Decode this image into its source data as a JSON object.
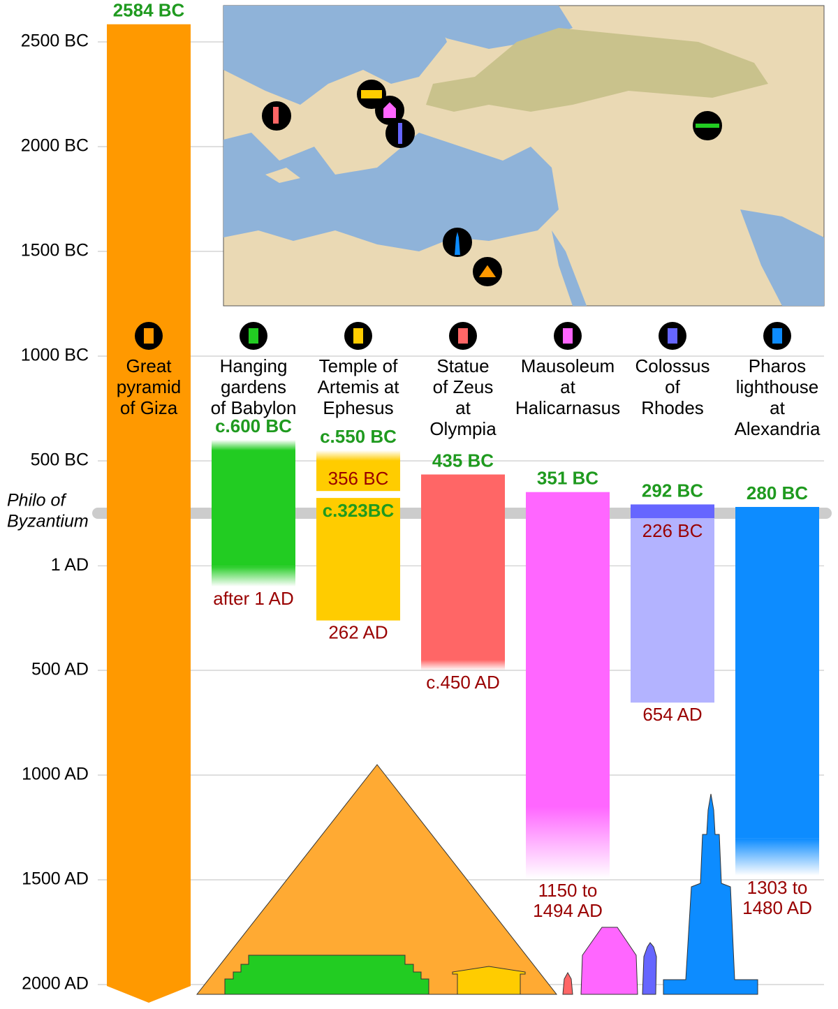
{
  "chart_data": {
    "type": "timeline",
    "ylim": [
      -2700,
      2100
    ],
    "yticks": [
      {
        "value": -2500,
        "label": "2500 BC"
      },
      {
        "value": -2000,
        "label": "2000 BC"
      },
      {
        "value": -1500,
        "label": "1500 BC"
      },
      {
        "value": -1000,
        "label": "1000 BC"
      },
      {
        "value": -500,
        "label": "500 BC"
      },
      {
        "value": 1,
        "label": "1 AD"
      },
      {
        "value": 500,
        "label": "500 AD"
      },
      {
        "value": 1000,
        "label": "1000 AD"
      },
      {
        "value": 1500,
        "label": "1500 AD"
      },
      {
        "value": 2000,
        "label": "2000 AD"
      }
    ],
    "grid": true,
    "reference": {
      "lines": [
        "Philo of",
        "Byzantium"
      ],
      "value": -250
    },
    "series": [
      {
        "name": [
          "Great",
          "pyramid",
          "of Giza"
        ],
        "color": "#ff9900",
        "segments": [
          {
            "start": -2584,
            "end": null,
            "labels": [
              {
                "lines": [
                  "2584 BC"
                ],
                "edge": "start",
                "inside": false,
                "color": "#1f9a1f"
              }
            ]
          }
        ]
      },
      {
        "name": [
          "Hanging",
          "gardens",
          "of Babylon"
        ],
        "color": "#22cc22",
        "segments": [
          {
            "start": -600,
            "fade_start": -550,
            "fade_end": 1,
            "end": 100,
            "labels": [
              {
                "lines": [
                  "c.600 BC"
                ],
                "edge": "start",
                "inside": false,
                "color": "#1f9a1f"
              },
              {
                "lines": [
                  "after 1 AD"
                ],
                "edge": "end",
                "inside": false,
                "color": "#990000"
              }
            ]
          }
        ]
      },
      {
        "name": [
          "Temple of",
          "Artemis at",
          "Ephesus"
        ],
        "color": "#ffcc00",
        "segments": [
          {
            "start": -550,
            "fade_start": -500,
            "end": -356,
            "labels": [
              {
                "lines": [
                  "c.550 BC"
                ],
                "edge": "start",
                "inside": false,
                "color": "#1f9a1f"
              },
              {
                "lines": [
                  "356 BC"
                ],
                "edge": "end",
                "inside": true,
                "color": "#990000"
              }
            ]
          },
          {
            "start": -323,
            "end": 262,
            "labels": [
              {
                "lines": [
                  "c.323BC"
                ],
                "edge": "start",
                "inside": true,
                "color": "#1f9a1f"
              },
              {
                "lines": [
                  "262 AD"
                ],
                "edge": "end",
                "inside": false,
                "color": "#990000"
              }
            ]
          }
        ]
      },
      {
        "name": [
          "Statue",
          "of Zeus",
          "at",
          "Olympia"
        ],
        "color": "#ff6666",
        "segments": [
          {
            "start": -435,
            "fade_end": 450,
            "end": 500,
            "labels": [
              {
                "lines": [
                  "435 BC"
                ],
                "edge": "start",
                "inside": false,
                "color": "#1f9a1f"
              },
              {
                "lines": [
                  "c.450 AD"
                ],
                "edge": "end",
                "inside": false,
                "color": "#990000"
              }
            ]
          }
        ]
      },
      {
        "name": [
          "Mausoleum",
          "at",
          "Halicarnasus"
        ],
        "color": "#ff66ff",
        "segments": [
          {
            "start": -351,
            "fade_end": 1150,
            "end": 1494,
            "labels": [
              {
                "lines": [
                  "351 BC"
                ],
                "edge": "start",
                "inside": false,
                "color": "#1f9a1f"
              },
              {
                "lines": [
                  "1150 to",
                  "1494 AD"
                ],
                "edge": "end",
                "inside": false,
                "color": "#990000"
              }
            ]
          }
        ]
      },
      {
        "name": [
          "Colossus",
          "of",
          "Rhodes"
        ],
        "color": "#6666ff",
        "segments": [
          {
            "start": -292,
            "end": -226,
            "labels": [
              {
                "lines": [
                  "292 BC"
                ],
                "edge": "start",
                "inside": false,
                "color": "#1f9a1f"
              }
            ]
          },
          {
            "start": -226,
            "end": 654,
            "color": "#b3b3ff",
            "labels": [
              {
                "lines": [
                  "226 BC"
                ],
                "edge": "start",
                "inside": true,
                "color": "#990000"
              },
              {
                "lines": [
                  "654 AD"
                ],
                "edge": "end",
                "inside": false,
                "color": "#990000"
              }
            ]
          }
        ]
      },
      {
        "name": [
          "Pharos",
          "lighthouse",
          "at",
          "Alexandria"
        ],
        "color": "#0d8cff",
        "segments": [
          {
            "start": -280,
            "fade_end": 1303,
            "end": 1480,
            "labels": [
              {
                "lines": [
                  "280 BC"
                ],
                "edge": "start",
                "inside": false,
                "color": "#1f9a1f"
              },
              {
                "lines": [
                  "1303 to",
                  "1480 AD"
                ],
                "edge": "end",
                "inside": false,
                "color": "#990000"
              }
            ]
          }
        ]
      }
    ]
  }
}
